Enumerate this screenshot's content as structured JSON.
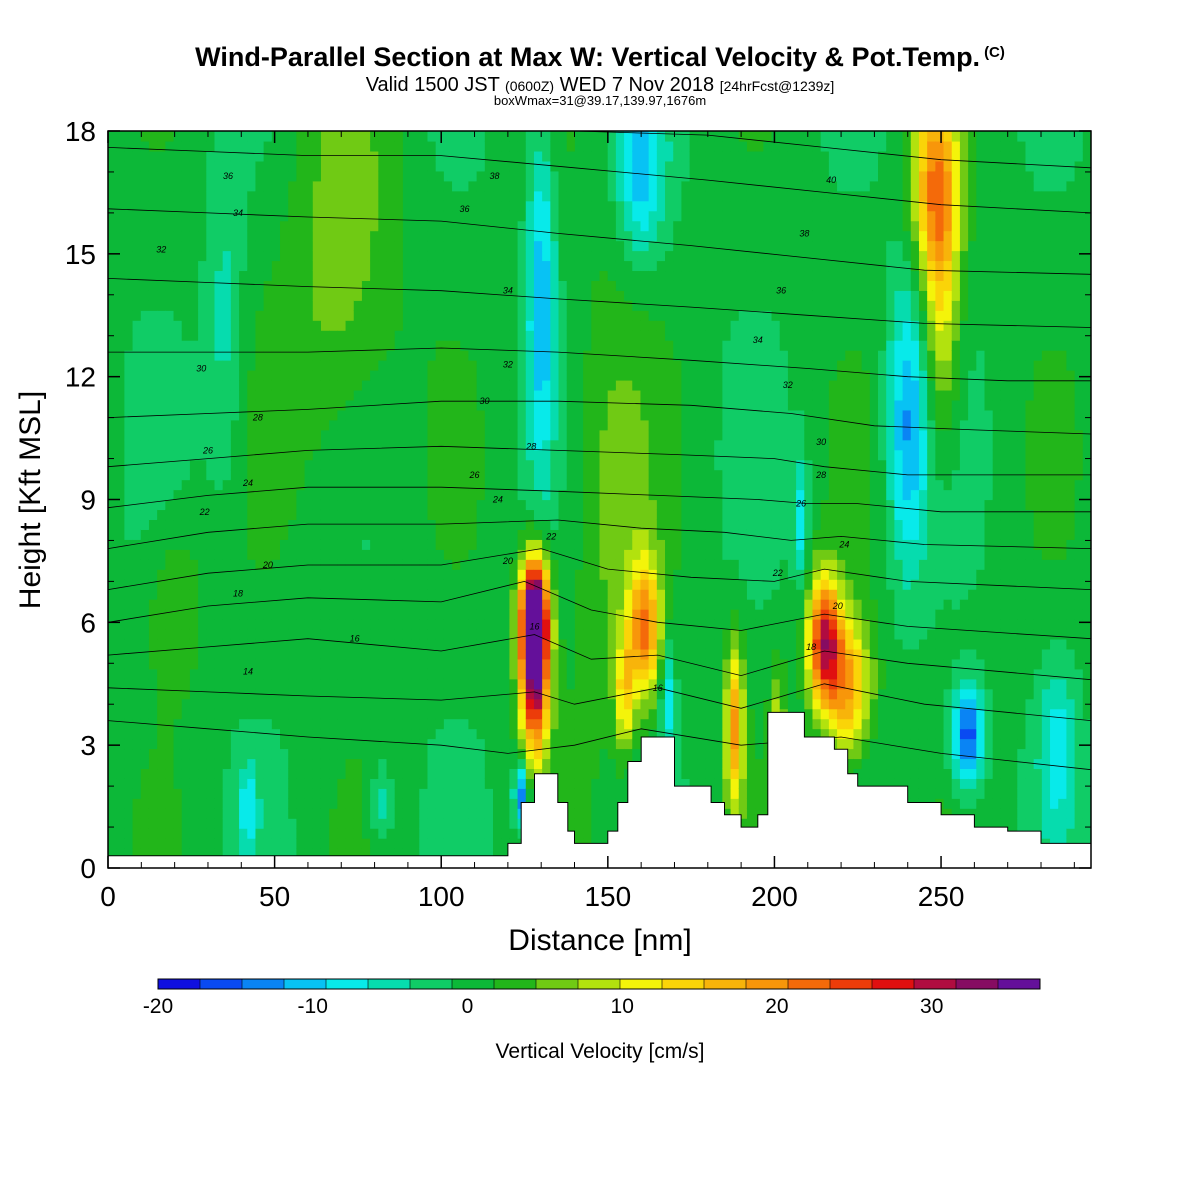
{
  "title": {
    "main": "Wind-Parallel Section at Max W: Vertical Velocity & Pot.Temp.",
    "copyright": "(C)",
    "valid_prefix": "Valid 1500 JST ",
    "valid_utc": "(0600Z)",
    "valid_date": " WED 7 Nov 2018 ",
    "forecast": "[24hrFcst@1239z]",
    "box": "boxWmax=31@39.17,139.97,1676m"
  },
  "colors": {
    "scale": [
      "#1010e0",
      "#0a4af2",
      "#0a84f4",
      "#08c2f4",
      "#08eaea",
      "#06dcae",
      "#10cc66",
      "#0cb838",
      "#22b61a",
      "#70ca14",
      "#b2e20e",
      "#f4f40a",
      "#fad408",
      "#f8b40a",
      "#f8960a",
      "#f46a0a",
      "#ec3c0a",
      "#e01010",
      "#b00c40",
      "#860c62",
      "#64109a"
    ],
    "terrain": "#ffffff"
  },
  "chart_data": {
    "type": "heatmap",
    "x_label": "Distance [nm]",
    "y_label": "Height [Kft MSL]",
    "x_range": [
      0,
      295
    ],
    "y_range": [
      0,
      18
    ],
    "x_ticks": [
      0,
      50,
      100,
      150,
      200,
      250
    ],
    "y_ticks": [
      0,
      3,
      6,
      9,
      12,
      15,
      18
    ],
    "x_tick_labels": [
      "0",
      "50",
      "100",
      "150",
      "200",
      "250"
    ],
    "y_tick_labels": [
      "0",
      "3",
      "6",
      "9",
      "12",
      "15",
      "18"
    ],
    "colorbar": {
      "label": "Vertical Velocity [cm/s]",
      "min": -20,
      "max": 37,
      "step": 2.71,
      "ticks": [
        -20,
        -10,
        0,
        10,
        20,
        30
      ],
      "tick_labels": [
        "-20",
        "-10",
        "0",
        "10",
        "20",
        "30"
      ]
    },
    "background_value": 0,
    "updraft_features": [
      {
        "x": 128,
        "y": 5.0,
        "sx": 3.0,
        "sy": 1.5,
        "w": 36
      },
      {
        "x": 128,
        "y": 6.3,
        "sx": 3.0,
        "sy": 0.9,
        "w": 26
      },
      {
        "x": 161,
        "y": 5.8,
        "sx": 3.5,
        "sy": 1.2,
        "w": 20
      },
      {
        "x": 155,
        "y": 4.2,
        "sx": 2.0,
        "sy": 1.0,
        "w": 12
      },
      {
        "x": 188,
        "y": 3.5,
        "sx": 2.0,
        "sy": 1.4,
        "w": 18
      },
      {
        "x": 201,
        "y": 3.6,
        "sx": 1.6,
        "sy": 1.0,
        "w": 8
      },
      {
        "x": 215,
        "y": 5.6,
        "sx": 3.5,
        "sy": 1.1,
        "w": 27
      },
      {
        "x": 222,
        "y": 4.4,
        "sx": 5.0,
        "sy": 1.2,
        "w": 18
      },
      {
        "x": 248,
        "y": 16.8,
        "sx": 5.0,
        "sy": 1.6,
        "w": 16
      },
      {
        "x": 250,
        "y": 14.0,
        "sx": 4.0,
        "sy": 2.5,
        "w": 12
      },
      {
        "x": 70,
        "y": 14.5,
        "sx": 12.0,
        "sy": 3.5,
        "w": 6
      },
      {
        "x": 150,
        "y": 9.0,
        "sx": 9.0,
        "sy": 4.0,
        "w": 5
      },
      {
        "x": 20,
        "y": 6.5,
        "sx": 6.0,
        "sy": 1.5,
        "w": 5
      }
    ],
    "downdraft_features": [
      {
        "x": 130,
        "y": 14.0,
        "sx": 3.0,
        "sy": 3.0,
        "w": -11
      },
      {
        "x": 124,
        "y": 1.8,
        "sx": 1.5,
        "sy": 0.6,
        "w": -16
      },
      {
        "x": 160,
        "y": 17.0,
        "sx": 5.0,
        "sy": 1.5,
        "w": -10
      },
      {
        "x": 240,
        "y": 10.8,
        "sx": 4.5,
        "sy": 2.5,
        "w": -12
      },
      {
        "x": 258,
        "y": 3.2,
        "sx": 3.5,
        "sy": 0.9,
        "w": -17
      },
      {
        "x": 208,
        "y": 8.5,
        "sx": 1.5,
        "sy": 1.2,
        "w": -8
      },
      {
        "x": 168,
        "y": 4.2,
        "sx": 1.5,
        "sy": 1.0,
        "w": -9
      },
      {
        "x": 42,
        "y": 1.5,
        "sx": 2.0,
        "sy": 0.7,
        "w": -8
      },
      {
        "x": 82,
        "y": 1.6,
        "sx": 2.5,
        "sy": 0.7,
        "w": -6
      },
      {
        "x": 35,
        "y": 13.0,
        "sx": 4.0,
        "sy": 3.0,
        "w": -5
      },
      {
        "x": 285,
        "y": 3.0,
        "sx": 4.0,
        "sy": 1.5,
        "w": -7
      }
    ],
    "terrain_profile": {
      "x": [
        0,
        120,
        120,
        124,
        124,
        128,
        128,
        135,
        135,
        138,
        138,
        140,
        140,
        150,
        150,
        153,
        153,
        156,
        156,
        160,
        160,
        170,
        170,
        181,
        181,
        185,
        185,
        190,
        190,
        195,
        195,
        198,
        198,
        209,
        209,
        218,
        218,
        222,
        222,
        225,
        225,
        240,
        240,
        250,
        250,
        260,
        260,
        270,
        270,
        280,
        280,
        295
      ],
      "y": [
        0.3,
        0.3,
        0.6,
        0.6,
        1.6,
        1.6,
        2.3,
        2.3,
        1.6,
        1.6,
        0.9,
        0.9,
        0.6,
        0.6,
        0.9,
        0.9,
        1.6,
        1.6,
        2.6,
        2.6,
        3.2,
        3.2,
        2.0,
        2.0,
        1.6,
        1.6,
        1.3,
        1.3,
        1.0,
        1.0,
        1.3,
        1.3,
        3.8,
        3.8,
        3.2,
        3.2,
        2.9,
        2.9,
        2.3,
        2.3,
        2.0,
        2.0,
        1.6,
        1.6,
        1.3,
        1.3,
        1.0,
        1.0,
        0.9,
        0.9,
        0.6,
        0.6
      ]
    },
    "isentropes": [
      {
        "label": "14",
        "points": [
          [
            0,
            3.6
          ],
          [
            30,
            3.4
          ],
          [
            60,
            3.2
          ],
          [
            100,
            3.0
          ],
          [
            120,
            2.8
          ],
          [
            140,
            3.0
          ],
          [
            160,
            3.4
          ],
          [
            190,
            3.0
          ],
          [
            220,
            3.2
          ],
          [
            250,
            2.8
          ],
          [
            295,
            2.4
          ]
        ]
      },
      {
        "label": "16",
        "points": [
          [
            0,
            4.4
          ],
          [
            30,
            4.3
          ],
          [
            60,
            4.2
          ],
          [
            100,
            4.1
          ],
          [
            128,
            4.3
          ],
          [
            140,
            4.0
          ],
          [
            165,
            4.4
          ],
          [
            190,
            3.9
          ],
          [
            215,
            4.5
          ],
          [
            245,
            4.0
          ],
          [
            295,
            3.6
          ]
        ]
      },
      {
        "label": "18",
        "points": [
          [
            0,
            5.2
          ],
          [
            30,
            5.4
          ],
          [
            60,
            5.6
          ],
          [
            100,
            5.3
          ],
          [
            128,
            5.7
          ],
          [
            145,
            5.1
          ],
          [
            165,
            5.2
          ],
          [
            190,
            4.7
          ],
          [
            215,
            5.3
          ],
          [
            240,
            5.0
          ],
          [
            295,
            4.6
          ]
        ]
      },
      {
        "label": "20",
        "points": [
          [
            0,
            6.0
          ],
          [
            30,
            6.4
          ],
          [
            60,
            6.6
          ],
          [
            100,
            6.5
          ],
          [
            125,
            7.0
          ],
          [
            145,
            6.3
          ],
          [
            165,
            6.0
          ],
          [
            190,
            5.8
          ],
          [
            215,
            6.2
          ],
          [
            240,
            5.9
          ],
          [
            295,
            5.6
          ]
        ]
      },
      {
        "label": "22",
        "points": [
          [
            0,
            6.8
          ],
          [
            30,
            7.2
          ],
          [
            60,
            7.4
          ],
          [
            100,
            7.4
          ],
          [
            130,
            7.8
          ],
          [
            150,
            7.3
          ],
          [
            175,
            7.1
          ],
          [
            200,
            7.0
          ],
          [
            215,
            7.3
          ],
          [
            240,
            7.0
          ],
          [
            295,
            6.8
          ]
        ]
      },
      {
        "label": "24",
        "points": [
          [
            0,
            7.8
          ],
          [
            30,
            8.2
          ],
          [
            60,
            8.4
          ],
          [
            100,
            8.4
          ],
          [
            135,
            8.5
          ],
          [
            160,
            8.3
          ],
          [
            185,
            8.2
          ],
          [
            205,
            8.0
          ],
          [
            220,
            8.1
          ],
          [
            245,
            7.9
          ],
          [
            295,
            7.8
          ]
        ]
      },
      {
        "label": "26",
        "points": [
          [
            0,
            8.8
          ],
          [
            30,
            9.1
          ],
          [
            60,
            9.3
          ],
          [
            100,
            9.3
          ],
          [
            135,
            9.2
          ],
          [
            165,
            9.1
          ],
          [
            195,
            9.0
          ],
          [
            210,
            8.9
          ],
          [
            225,
            8.9
          ],
          [
            250,
            8.7
          ],
          [
            295,
            8.7
          ]
        ]
      },
      {
        "label": "28",
        "points": [
          [
            0,
            9.8
          ],
          [
            30,
            10.0
          ],
          [
            60,
            10.2
          ],
          [
            100,
            10.3
          ],
          [
            135,
            10.2
          ],
          [
            170,
            10.1
          ],
          [
            200,
            10.0
          ],
          [
            215,
            9.8
          ],
          [
            240,
            9.6
          ],
          [
            295,
            9.6
          ]
        ]
      },
      {
        "label": "30",
        "points": [
          [
            0,
            11.0
          ],
          [
            30,
            11.1
          ],
          [
            60,
            11.2
          ],
          [
            100,
            11.4
          ],
          [
            135,
            11.4
          ],
          [
            175,
            11.3
          ],
          [
            205,
            11.1
          ],
          [
            230,
            10.8
          ],
          [
            260,
            10.7
          ],
          [
            295,
            10.6
          ]
        ]
      },
      {
        "label": "32",
        "points": [
          [
            0,
            12.6
          ],
          [
            30,
            12.6
          ],
          [
            60,
            12.6
          ],
          [
            100,
            12.7
          ],
          [
            135,
            12.6
          ],
          [
            175,
            12.4
          ],
          [
            210,
            12.2
          ],
          [
            240,
            12.0
          ],
          [
            270,
            11.9
          ],
          [
            295,
            11.9
          ]
        ]
      },
      {
        "label": "34",
        "points": [
          [
            0,
            14.4
          ],
          [
            30,
            14.3
          ],
          [
            60,
            14.2
          ],
          [
            100,
            14.1
          ],
          [
            135,
            13.9
          ],
          [
            175,
            13.7
          ],
          [
            210,
            13.5
          ],
          [
            245,
            13.3
          ],
          [
            295,
            13.2
          ]
        ]
      },
      {
        "label": "36",
        "points": [
          [
            0,
            16.1
          ],
          [
            30,
            16.0
          ],
          [
            60,
            15.9
          ],
          [
            100,
            15.8
          ],
          [
            135,
            15.5
          ],
          [
            175,
            15.2
          ],
          [
            210,
            14.9
          ],
          [
            245,
            14.6
          ],
          [
            295,
            14.5
          ]
        ]
      },
      {
        "label": "38",
        "points": [
          [
            0,
            17.6
          ],
          [
            30,
            17.5
          ],
          [
            60,
            17.4
          ],
          [
            100,
            17.4
          ],
          [
            140,
            17.1
          ],
          [
            180,
            16.8
          ],
          [
            215,
            16.5
          ],
          [
            250,
            16.2
          ],
          [
            295,
            16.0
          ]
        ]
      },
      {
        "label": "40",
        "points": [
          [
            140,
            18.0
          ],
          [
            180,
            17.9
          ],
          [
            215,
            17.6
          ],
          [
            250,
            17.3
          ],
          [
            295,
            17.1
          ]
        ]
      }
    ],
    "isentrope_labels": [
      {
        "text": "14",
        "x": 42,
        "y": 4.8
      },
      {
        "text": "16",
        "x": 74,
        "y": 5.6
      },
      {
        "text": "16",
        "x": 165,
        "y": 4.4
      },
      {
        "text": "16",
        "x": 128,
        "y": 5.9
      },
      {
        "text": "18",
        "x": 39,
        "y": 6.7
      },
      {
        "text": "18",
        "x": 211,
        "y": 5.4
      },
      {
        "text": "20",
        "x": 48,
        "y": 7.4
      },
      {
        "text": "20",
        "x": 120,
        "y": 7.5
      },
      {
        "text": "20",
        "x": 219,
        "y": 6.4
      },
      {
        "text": "22",
        "x": 29,
        "y": 8.7
      },
      {
        "text": "22",
        "x": 133,
        "y": 8.1
      },
      {
        "text": "22",
        "x": 201,
        "y": 7.2
      },
      {
        "text": "24",
        "x": 42,
        "y": 9.4
      },
      {
        "text": "24",
        "x": 117,
        "y": 9.0
      },
      {
        "text": "24",
        "x": 221,
        "y": 7.9
      },
      {
        "text": "26",
        "x": 30,
        "y": 10.2
      },
      {
        "text": "26",
        "x": 110,
        "y": 9.6
      },
      {
        "text": "26",
        "x": 208,
        "y": 8.9
      },
      {
        "text": "28",
        "x": 45,
        "y": 11.0
      },
      {
        "text": "28",
        "x": 127,
        "y": 10.3
      },
      {
        "text": "28",
        "x": 214,
        "y": 9.6
      },
      {
        "text": "30",
        "x": 28,
        "y": 12.2
      },
      {
        "text": "30",
        "x": 113,
        "y": 11.4
      },
      {
        "text": "30",
        "x": 214,
        "y": 10.4
      },
      {
        "text": "32",
        "x": 16,
        "y": 15.1
      },
      {
        "text": "32",
        "x": 120,
        "y": 12.3
      },
      {
        "text": "32",
        "x": 204,
        "y": 11.8
      },
      {
        "text": "34",
        "x": 39,
        "y": 16.0
      },
      {
        "text": "34",
        "x": 120,
        "y": 14.1
      },
      {
        "text": "34",
        "x": 195,
        "y": 12.9
      },
      {
        "text": "36",
        "x": 36,
        "y": 16.9
      },
      {
        "text": "36",
        "x": 107,
        "y": 16.1
      },
      {
        "text": "36",
        "x": 202,
        "y": 14.1
      },
      {
        "text": "38",
        "x": 116,
        "y": 16.9
      },
      {
        "text": "38",
        "x": 209,
        "y": 15.5
      },
      {
        "text": "40",
        "x": 217,
        "y": 16.8
      }
    ]
  }
}
